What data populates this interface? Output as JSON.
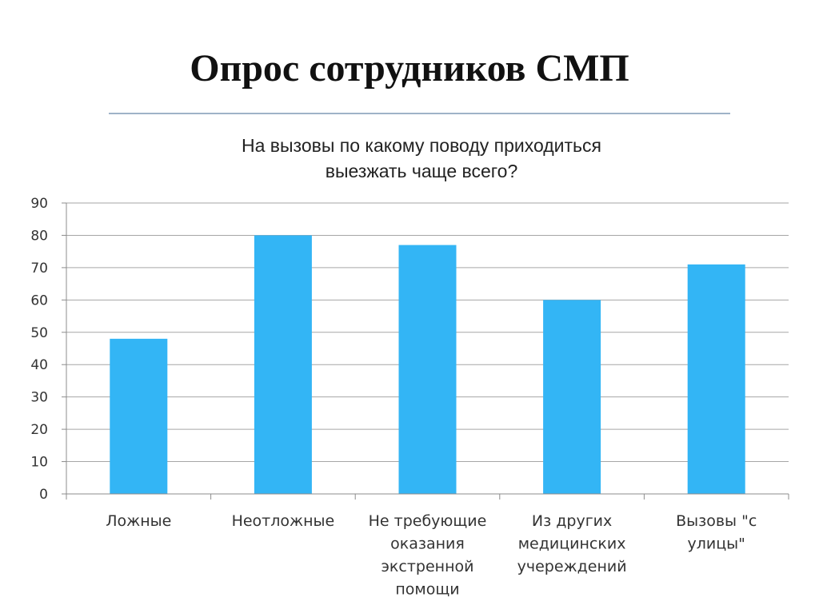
{
  "slide": {
    "title": "Опрос сотрудников СМП"
  },
  "chart_data": {
    "type": "bar",
    "title_lines": [
      "На вызовы по какому поводу приходиться",
      "выезжать чаще всего?"
    ],
    "categories": [
      [
        "Ложные"
      ],
      [
        "Неотложные"
      ],
      [
        "Не требующие",
        "оказания",
        "экстренной",
        "помощи"
      ],
      [
        "Из других",
        "медицинских",
        "учереждений"
      ],
      [
        "Вызовы \"с",
        "улицы\""
      ]
    ],
    "values": [
      48,
      80,
      77,
      60,
      71
    ],
    "ylim": [
      0,
      90
    ],
    "yticks": [
      0,
      10,
      20,
      30,
      40,
      50,
      60,
      70,
      80,
      90
    ],
    "grid": true,
    "bar_color": "#33b5f5"
  }
}
